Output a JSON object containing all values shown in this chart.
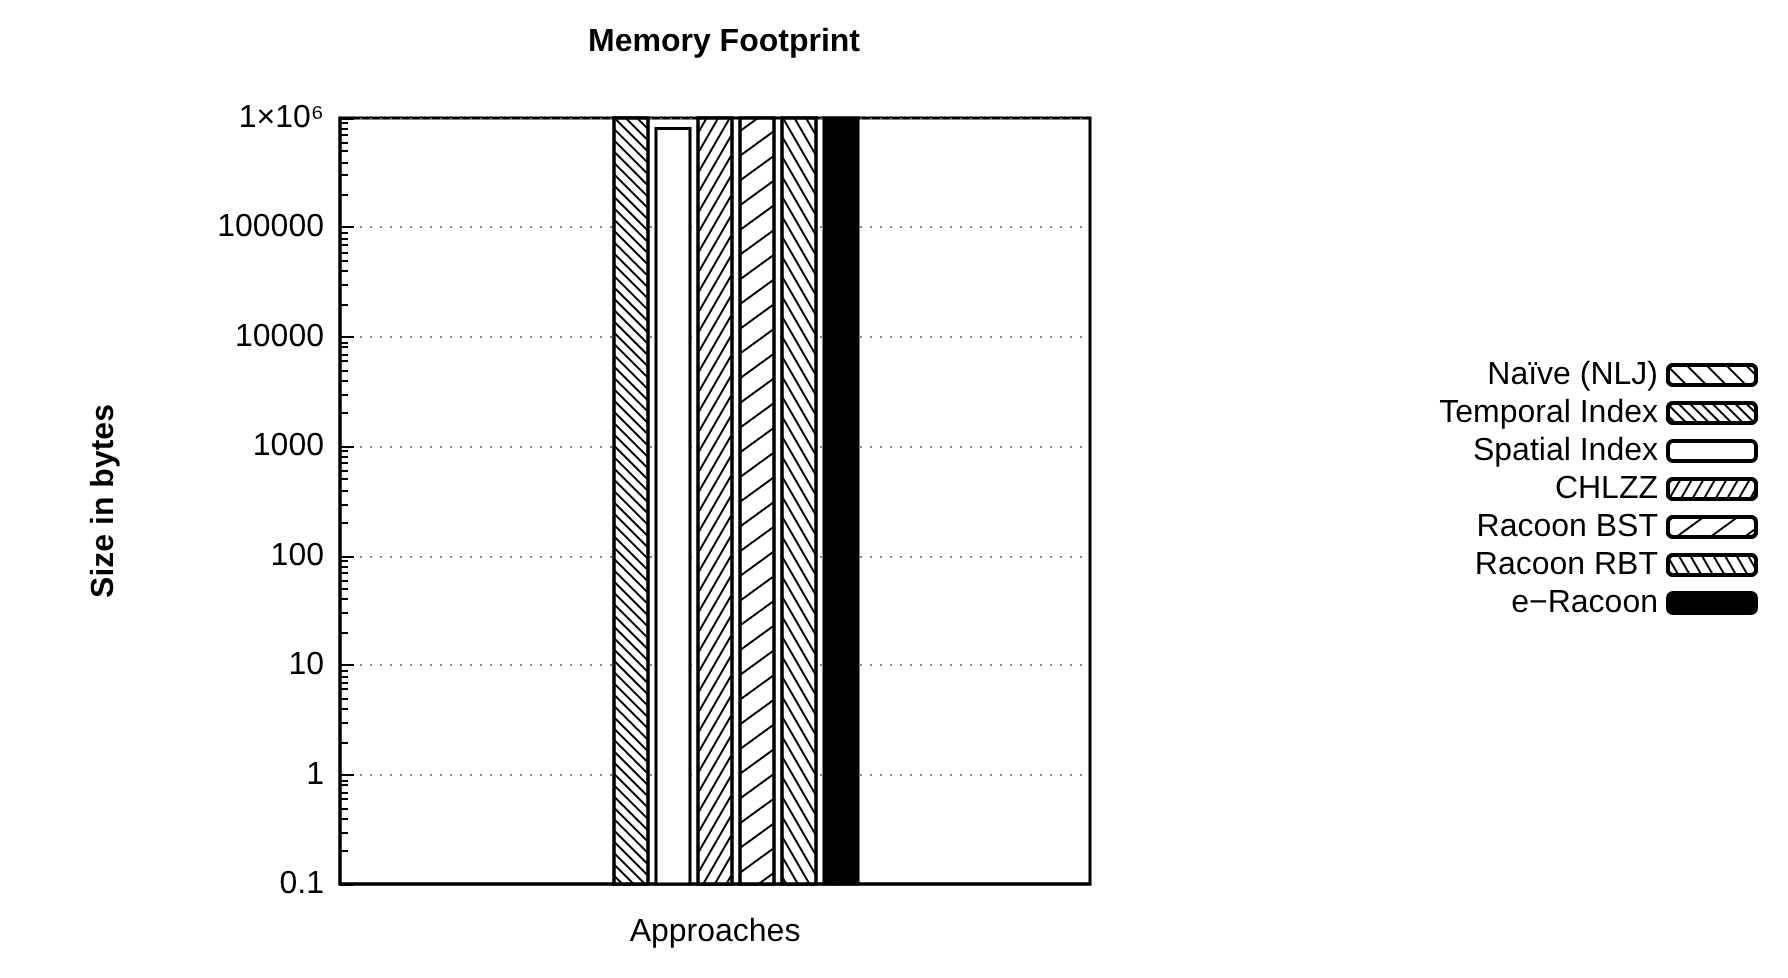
{
  "chart_data": {
    "type": "bar",
    "title": "Memory Footprint",
    "xlabel": "Approaches",
    "ylabel": "Size in bytes",
    "categories": [
      null
    ],
    "series": [
      {
        "name": "Naïve (NLJ)",
        "color": "#ffffff",
        "values": [
          null
        ]
      },
      {
        "name": "Temporal Index",
        "color": "#ffffff",
        "values": [
          1000000
        ]
      },
      {
        "name": "Spatial Index",
        "color": "#ffffff",
        "values": [
          800000
        ]
      },
      {
        "name": "CHLZZ",
        "color": "#ffffff",
        "values": [
          1000000
        ]
      },
      {
        "name": "Racoon BST",
        "color": "#ffffff",
        "values": [
          1000000
        ]
      },
      {
        "name": "Racoon RBT",
        "color": "#ffffff",
        "values": [
          1000000
        ]
      },
      {
        "name": "e−Racoon",
        "color": "#000000",
        "values": [
          1000000
        ]
      }
    ],
    "log": "y",
    "ylim": [
      0.1,
      1000000
    ],
    "yticks": [
      0.1,
      1,
      10,
      100,
      1000,
      10000,
      100000,
      {
        "value": 1000000,
        "label": "1×10⁶"
      }
    ],
    "grid": "y",
    "legend": "right"
  }
}
